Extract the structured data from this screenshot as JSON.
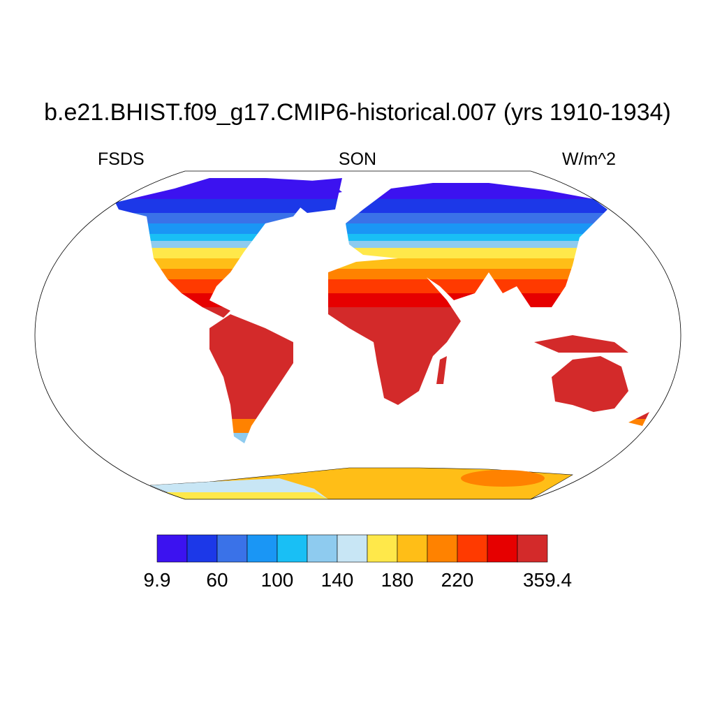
{
  "header": {
    "title": "b.e21.BHIST.f09_g17.CMIP6-historical.007 (yrs 1910-1934)",
    "left": "FSDS",
    "center": "SON",
    "right": "W/m^2"
  },
  "colorbar": {
    "colors": [
      "#3c12f0",
      "#1c38e8",
      "#3a72e8",
      "#1a96f5",
      "#19bff5",
      "#8ecbef",
      "#c8e6f5",
      "#ffe84a",
      "#ffbe17",
      "#ff8200",
      "#ff3a00",
      "#e60000",
      "#d32a2a"
    ],
    "boundaries": [
      9.9,
      null,
      60,
      null,
      100,
      null,
      140,
      null,
      180,
      null,
      220,
      null,
      null,
      359.4
    ]
  }
}
